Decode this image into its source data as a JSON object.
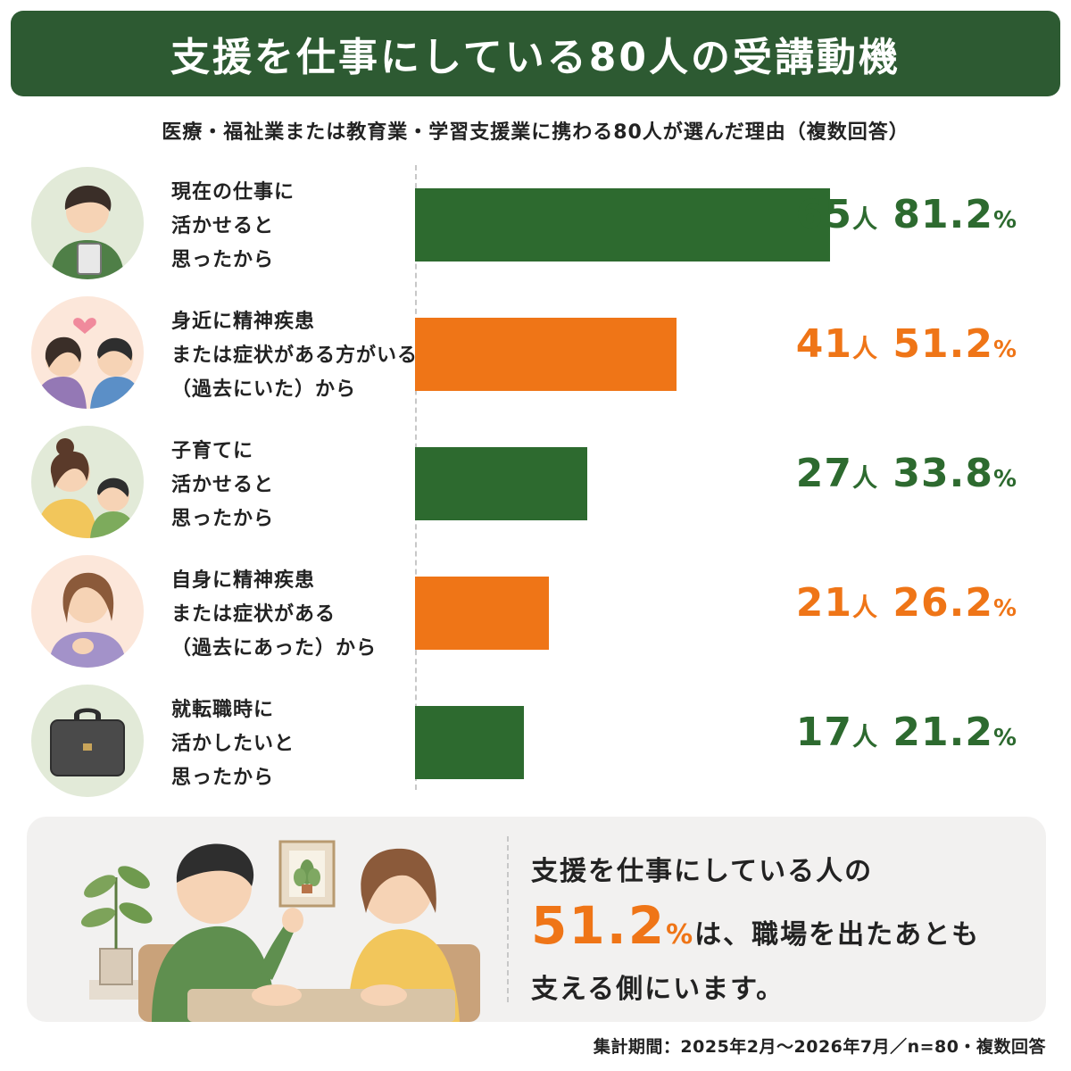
{
  "title": "支援を仕事にしている80人の受講動機",
  "subtitle": "医療・福祉業または教育業・学習支援業に携わる80人が選んだ理由（複数回答）",
  "chart_data": {
    "type": "bar",
    "orientation": "horizontal",
    "title": "支援を仕事にしている80人の受講動機",
    "subtitle": "医療・福祉業または教育業・学習支援業に携わる80人が選んだ理由（複数回答）",
    "categories": [
      "現在の仕事に活かせると思ったから",
      "身近に精神疾患または症状がある方がいる（過去にいた）から",
      "子育てに活かせると思ったから",
      "自身に精神疾患または症状がある（過去にあった）から",
      "就転職時に活かしたいと思ったから"
    ],
    "values": [
      65,
      41,
      27,
      21,
      17
    ],
    "percentages": [
      81.2,
      51.2,
      33.8,
      26.2,
      21.2
    ],
    "xlim": [
      0,
      65
    ],
    "colors": [
      "#2d6a2f",
      "#ef7517",
      "#2d6a2f",
      "#ef7517",
      "#2d6a2f"
    ],
    "grid": false
  },
  "rows": [
    {
      "lines": [
        "現在の仕事に",
        "活かせると",
        "思ったから"
      ],
      "count": "65",
      "unit": "人",
      "pct": "81.2",
      "pct_sign": "%",
      "color": "#2d6a2f",
      "icon": "worker-with-clipboard-icon"
    },
    {
      "lines": [
        "身近に精神疾患",
        "または症状がある方がいる",
        "（過去にいた）から"
      ],
      "count": "41",
      "unit": "人",
      "pct": "51.2",
      "pct_sign": "%",
      "color": "#ef7517",
      "icon": "two-people-heart-icon"
    },
    {
      "lines": [
        "子育てに",
        "活かせると",
        "思ったから"
      ],
      "count": "27",
      "unit": "人",
      "pct": "33.8",
      "pct_sign": "%",
      "color": "#2d6a2f",
      "icon": "parent-child-icon"
    },
    {
      "lines": [
        "自身に精神疾患",
        "または症状がある",
        "（過去にあった）から"
      ],
      "count": "21",
      "unit": "人",
      "pct": "26.2",
      "pct_sign": "%",
      "color": "#ef7517",
      "icon": "woman-hand-on-chest-icon"
    },
    {
      "lines": [
        "就転職時に",
        "活かしたいと",
        "思ったから"
      ],
      "count": "17",
      "unit": "人",
      "pct": "21.2",
      "pct_sign": "%",
      "color": "#2d6a2f",
      "icon": "briefcase-icon"
    }
  ],
  "callout": {
    "line1": "支援を仕事にしている人の",
    "highlight": "51.2",
    "highlight_pct": "%",
    "line2_rest": "は、職場を出たあとも",
    "line3": "支える側にいます。"
  },
  "footnote": "集計期間：2025年2月〜2026年7月／n=80・複数回答",
  "colors": {
    "banner": "#2d5a32",
    "green": "#2d6a2f",
    "orange": "#ef7517",
    "panel": "#f2f1f0"
  }
}
